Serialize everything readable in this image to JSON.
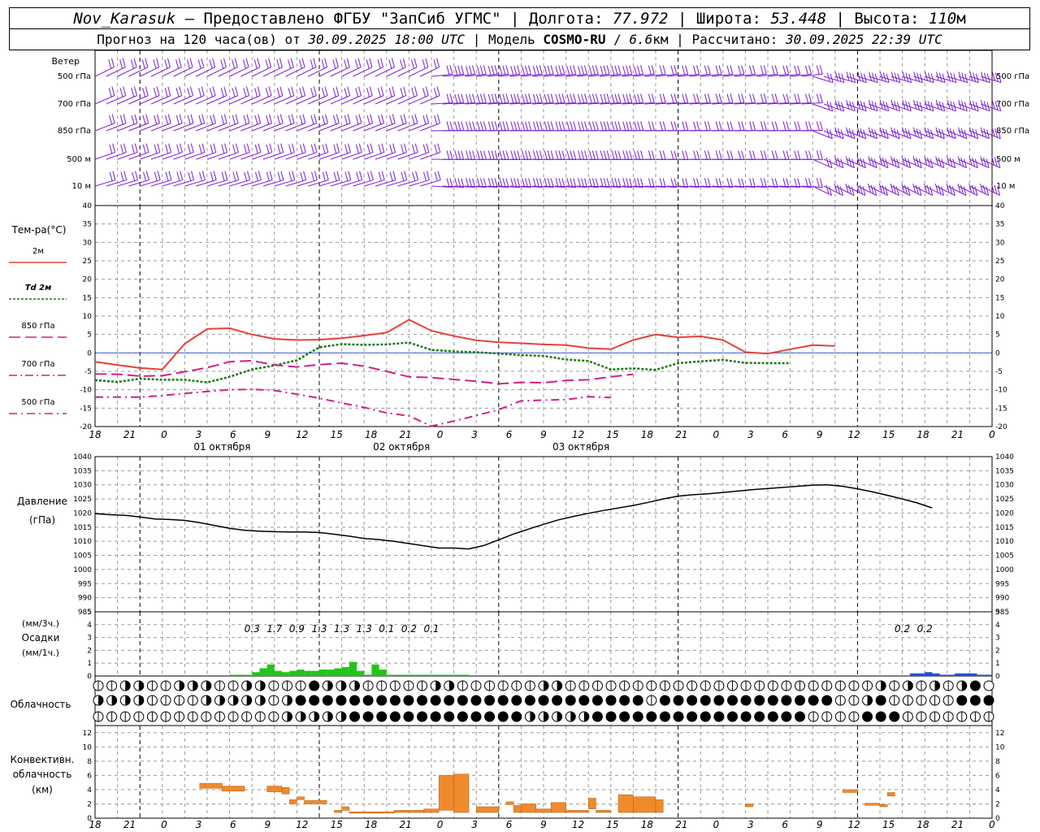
{
  "header": {
    "station": "Nov_Karasuk",
    "sep": " – ",
    "provider": "Предоставлено ФГБУ \"ЗапСиб УГМС\"",
    "lon_label": "Долгота:",
    "lon_value": "77.972",
    "lat_label": "Широта:",
    "lat_value": "53.448",
    "alt_label": "Высота:",
    "alt_value": "110",
    "alt_unit": "м",
    "forecast_label": "Прогноз на 120 часа(ов) от",
    "forecast_start": "30.09.2025 18:00 UTC",
    "model_label": "Модель",
    "model_name": "COSMO-RU",
    "model_res": "6.6",
    "model_res_unit": "км",
    "calc_label": "Рассчитано:",
    "calc_time": "30.09.2025 22:39 UTC"
  },
  "colors": {
    "wind": "#7a1fd0",
    "t2m": "#e8403a",
    "td2m": "#1a7a10",
    "t850": "#d0208a",
    "t700": "#d0208a",
    "t500": "#d0208a",
    "pressure": "#000000",
    "precip3h": "#22c31a",
    "precip_snow": "#1f4fd8",
    "convective": "#ef8a2c",
    "grid": "#9a9a9a",
    "zero": "#3f5fd8"
  },
  "wind_panel": {
    "title": "Ветер",
    "levels": [
      "500 гПа",
      "700 гПа",
      "850 гПа",
      "500 м",
      "10  м"
    ]
  },
  "time_axis": {
    "hour_labels": [
      "18",
      "21",
      "0",
      "3",
      "6",
      "9",
      "12",
      "15",
      "18",
      "21",
      "0",
      "3",
      "6",
      "9",
      "12",
      "15",
      "18",
      "21",
      "0",
      "3",
      "6",
      "9",
      "12",
      "15",
      "18",
      "21",
      "0"
    ],
    "dates": [
      "01 октября",
      "02 октября",
      "03 октября"
    ]
  },
  "legend": {
    "title": "Тем-ра(°C)",
    "items": [
      {
        "label": "2м"
      },
      {
        "label": "Td  2м"
      },
      {
        "label": "850 гПа"
      },
      {
        "label": "700 гПа"
      },
      {
        "label": "500 гПа"
      }
    ]
  },
  "pressure_panel": {
    "label1": "Давление",
    "label2": "(гПа)"
  },
  "precip_panel": {
    "label1": "(мм/3ч.)",
    "label2": "Осадки",
    "label3": "(мм/1ч.)"
  },
  "cloud_panel": {
    "label": "Облачность"
  },
  "conv_panel": {
    "label1": "Конвективн.",
    "label2": "облачность",
    "label3": "(км)"
  },
  "chart_data": [
    {
      "type": "line",
      "name": "temperature",
      "ylim": [
        -20,
        40
      ],
      "yticks": [
        -20,
        -15,
        -10,
        -5,
        0,
        5,
        10,
        15,
        20,
        25,
        30,
        35,
        40
      ],
      "x": [
        0,
        3,
        6,
        9,
        12,
        15,
        18,
        21,
        24,
        27,
        30,
        33,
        36,
        39,
        42,
        45,
        48,
        51,
        54,
        57,
        60,
        63,
        66,
        69,
        72,
        75,
        78,
        81,
        84,
        87,
        90,
        93,
        96,
        99,
        102,
        105,
        108,
        111,
        114,
        117,
        120,
        123,
        126
      ],
      "series": [
        {
          "name": "2м",
          "values": [
            -2.4,
            -3.3,
            -4.1,
            -4.5,
            2.5,
            6.5,
            6.7,
            5,
            3.8,
            3.5,
            3.6,
            4,
            4.7,
            5.5,
            9,
            6,
            4.6,
            3.4,
            2.9,
            2.6,
            2.3,
            2.1,
            1.3,
            1,
            3.5,
            5,
            4.2,
            4.5,
            3.5,
            0.2,
            -0.2,
            1,
            2.1,
            1.9,
            null,
            null,
            null,
            null,
            null,
            null,
            null,
            null,
            null
          ]
        },
        {
          "name": "Td  2м",
          "values": [
            -7.4,
            -7.9,
            -7,
            -7.3,
            -7.3,
            -8,
            -6.5,
            -4.5,
            -3.4,
            -2,
            1.5,
            2.4,
            2.2,
            2.3,
            2.8,
            0.8,
            0.4,
            0.2,
            -0.2,
            -0.6,
            -0.8,
            -1.8,
            -2.2,
            -4.5,
            -4.2,
            -4.6,
            -2.8,
            -2.3,
            -1.9,
            -2.7,
            -2.8,
            -2.8,
            null,
            null,
            null,
            null,
            null,
            null,
            null,
            null,
            null,
            null,
            null
          ]
        },
        {
          "name": "850 гПа",
          "values": [
            -5.7,
            -5.8,
            -6.3,
            -6.2,
            -5.1,
            -4,
            -2.4,
            -2.1,
            -3.3,
            -3.8,
            -3.2,
            -2.8,
            -3.6,
            -5,
            -6.5,
            -6.7,
            -7.2,
            -7.7,
            -8.4,
            -8,
            -8.1,
            -7.5,
            -7.3,
            -6.5,
            -5.8,
            null,
            null,
            null,
            null,
            null,
            null,
            null,
            null,
            null,
            null,
            null,
            null,
            null,
            null,
            null,
            null,
            null,
            null
          ]
        },
        {
          "name": "700 гПа",
          "values": [
            null,
            null,
            null,
            null,
            null,
            null,
            null,
            null,
            null,
            null,
            null,
            null,
            null,
            null,
            null,
            null,
            null,
            null,
            null,
            null,
            null,
            null,
            null,
            null,
            null,
            null,
            null,
            null,
            null,
            null,
            null,
            null,
            null,
            null,
            null,
            null,
            null,
            null,
            null,
            null,
            null,
            null,
            null
          ]
        },
        {
          "name": "500 гПа",
          "values": [
            -12,
            -12,
            -12,
            -11.6,
            -11,
            -10.5,
            -10,
            -9.9,
            -10.2,
            -11.2,
            -12.3,
            -13.6,
            -14.8,
            -16.3,
            -17.1,
            -19.9,
            -18.5,
            -17,
            -15.4,
            -13,
            -12.8,
            -12.7,
            -11.9,
            -12.1,
            null,
            null,
            null,
            null,
            null,
            null,
            null,
            null,
            null,
            null,
            null,
            null,
            null,
            null,
            null,
            null,
            null,
            null,
            null
          ]
        }
      ]
    },
    {
      "type": "line",
      "name": "pressure",
      "ylim": [
        985,
        1040
      ],
      "yticks": [
        985,
        990,
        995,
        1000,
        1005,
        1010,
        1015,
        1020,
        1025,
        1030,
        1035,
        1040
      ],
      "x": [
        0,
        2,
        4,
        6,
        8,
        10,
        12,
        14,
        16,
        18,
        20,
        22,
        24,
        26,
        28,
        30,
        32,
        34,
        36,
        38,
        40,
        42,
        44,
        46,
        48,
        50,
        52,
        54,
        56,
        58,
        60,
        62,
        64,
        66,
        68,
        70,
        72,
        74,
        76,
        78,
        80,
        82,
        84,
        86,
        88,
        90,
        92,
        94,
        96,
        98,
        100,
        102,
        104,
        106,
        108,
        110,
        112,
        114,
        116,
        118,
        120
      ],
      "values": [
        1019.8,
        1019.4,
        1019.2,
        1018.6,
        1017.9,
        1017.7,
        1017.4,
        1016.6,
        1015.6,
        1014.6,
        1013.9,
        1013.6,
        1013.4,
        1013.3,
        1013.3,
        1013.1,
        1012.5,
        1011.8,
        1011,
        1010.6,
        1010,
        1009.2,
        1008.4,
        1007.6,
        1007.6,
        1007.3,
        1008.5,
        1010.5,
        1012.6,
        1014.3,
        1016,
        1017.6,
        1018.8,
        1019.9,
        1020.9,
        1021.8,
        1022.7,
        1023.8,
        1025,
        1026,
        1026.5,
        1026.8,
        1027.3,
        1027.8,
        1028.3,
        1028.7,
        1029.1,
        1029.5,
        1029.9,
        1030,
        1029.5,
        1028.6,
        1027.5,
        1026.3,
        1025,
        1023.6,
        1021.8,
        null,
        null,
        null,
        null
      ]
    },
    {
      "type": "bar",
      "name": "precipitation",
      "ylim": [
        0,
        5
      ],
      "yticks": [
        0,
        1,
        2,
        3,
        4,
        5
      ],
      "three_hour_labels": [
        {
          "hour": 21,
          "value": "0.3"
        },
        {
          "hour": 24,
          "value": "1.7"
        },
        {
          "hour": 27,
          "value": "0.9"
        },
        {
          "hour": 30,
          "value": "1.3"
        },
        {
          "hour": 33,
          "value": "1.3"
        },
        {
          "hour": 36,
          "value": "1.3"
        },
        {
          "hour": 39,
          "value": "0.1"
        },
        {
          "hour": 42,
          "value": "0.2"
        },
        {
          "hour": 45,
          "value": "0.1"
        },
        {
          "hour": 108,
          "value": "0.2"
        },
        {
          "hour": 111,
          "value": "0.2"
        }
      ],
      "hourly_rain": [
        0,
        0,
        0,
        0,
        0,
        0,
        0,
        0,
        0,
        0,
        0,
        0,
        0,
        0,
        0,
        0,
        0,
        0,
        0.1,
        0.1,
        0.1,
        0.3,
        0.6,
        0.9,
        0.4,
        0.3,
        0.4,
        0.5,
        0.4,
        0.4,
        0.5,
        0.5,
        0.6,
        0.7,
        1.1,
        0.4,
        0.1,
        0.9,
        0.5,
        0.1,
        0.1,
        0.1,
        0.1,
        0.1,
        0.1,
        0.1,
        0.1,
        0.1,
        0.1,
        0.1,
        0,
        0,
        0,
        0,
        0,
        0,
        0,
        0,
        0,
        0,
        0,
        0,
        0,
        0,
        0,
        0,
        0,
        0,
        0,
        0,
        0,
        0,
        0,
        0,
        0,
        0,
        0,
        0,
        0,
        0,
        0,
        0,
        0,
        0,
        0,
        0,
        0,
        0,
        0,
        0,
        0,
        0,
        0,
        0,
        0,
        0,
        0,
        0,
        0,
        0,
        0,
        0,
        0,
        0,
        0,
        0,
        0,
        0,
        0,
        0,
        0,
        0,
        0,
        0,
        0,
        0,
        0,
        0,
        0,
        0,
        0,
        0
      ],
      "hourly_snow": [
        0,
        0,
        0,
        0,
        0,
        0,
        0,
        0,
        0,
        0,
        0,
        0,
        0,
        0,
        0,
        0,
        0,
        0,
        0,
        0,
        0,
        0,
        0,
        0,
        0,
        0,
        0,
        0,
        0,
        0,
        0,
        0,
        0,
        0,
        0,
        0,
        0,
        0,
        0,
        0,
        0,
        0,
        0,
        0,
        0,
        0,
        0,
        0,
        0,
        0,
        0,
        0,
        0,
        0,
        0,
        0,
        0,
        0,
        0,
        0,
        0,
        0,
        0,
        0,
        0,
        0,
        0,
        0,
        0,
        0,
        0,
        0,
        0,
        0,
        0,
        0,
        0,
        0,
        0,
        0,
        0,
        0,
        0,
        0,
        0,
        0,
        0,
        0,
        0,
        0,
        0,
        0,
        0,
        0,
        0,
        0,
        0,
        0,
        0,
        0,
        0,
        0,
        0,
        0,
        0,
        0,
        0,
        0,
        0,
        0.2,
        0.2,
        0.3,
        0.2,
        0.1,
        0.1,
        0.2,
        0.2,
        0.2,
        0.1,
        0.1,
        0
      ]
    },
    {
      "type": "bar",
      "name": "convective_clouds",
      "ylim": [
        0,
        13
      ],
      "yticks": [
        0,
        2,
        4,
        6,
        8,
        10,
        12
      ],
      "boxes": [
        {
          "h0": 14,
          "h1": 17,
          "base": 4.2,
          "top": 4.9
        },
        {
          "h0": 17,
          "h1": 20,
          "base": 3.8,
          "top": 4.5
        },
        {
          "h0": 23,
          "h1": 25,
          "base": 3.7,
          "top": 4.5
        },
        {
          "h0": 25,
          "h1": 26,
          "base": 3.4,
          "top": 4.3
        },
        {
          "h0": 26,
          "h1": 27,
          "base": 2,
          "top": 2.6
        },
        {
          "h0": 27,
          "h1": 28,
          "base": 2.6,
          "top": 3
        },
        {
          "h0": 28,
          "h1": 31,
          "base": 2,
          "top": 2.5
        },
        {
          "h0": 32,
          "h1": 33,
          "base": 0.8,
          "top": 1.1
        },
        {
          "h0": 33,
          "h1": 34,
          "base": 1.1,
          "top": 1.6
        },
        {
          "h0": 34,
          "h1": 40,
          "base": 0.7,
          "top": 0.9
        },
        {
          "h0": 40,
          "h1": 44,
          "base": 0.8,
          "top": 1.1
        },
        {
          "h0": 44,
          "h1": 46,
          "base": 0.8,
          "top": 1.3
        },
        {
          "h0": 46,
          "h1": 48,
          "base": 1.1,
          "top": 6
        },
        {
          "h0": 48,
          "h1": 50,
          "base": 0.8,
          "top": 6.2
        },
        {
          "h0": 51,
          "h1": 54,
          "base": 0.8,
          "top": 1.6
        },
        {
          "h0": 55,
          "h1": 56,
          "base": 1.9,
          "top": 2.3
        },
        {
          "h0": 56,
          "h1": 57,
          "base": 0.8,
          "top": 1.8
        },
        {
          "h0": 57,
          "h1": 59,
          "base": 0.8,
          "top": 2
        },
        {
          "h0": 59,
          "h1": 61,
          "base": 0.8,
          "top": 1.3
        },
        {
          "h0": 61,
          "h1": 63,
          "base": 0.8,
          "top": 2.2
        },
        {
          "h0": 63,
          "h1": 66,
          "base": 0.8,
          "top": 1.1
        },
        {
          "h0": 66,
          "h1": 67,
          "base": 1.3,
          "top": 2.8
        },
        {
          "h0": 67,
          "h1": 69,
          "base": 0.8,
          "top": 1.1
        },
        {
          "h0": 70,
          "h1": 72,
          "base": 0.8,
          "top": 3.3
        },
        {
          "h0": 72,
          "h1": 75,
          "base": 0.8,
          "top": 3
        },
        {
          "h0": 75,
          "h1": 76,
          "base": 0.8,
          "top": 2.6
        },
        {
          "h0": 87,
          "h1": 88,
          "base": 1.6,
          "top": 2
        },
        {
          "h0": 100,
          "h1": 102,
          "base": 3.6,
          "top": 4
        },
        {
          "h0": 103,
          "h1": 105,
          "base": 1.8,
          "top": 2.1
        },
        {
          "h0": 105,
          "h1": 106,
          "base": 1.6,
          "top": 1.9
        },
        {
          "h0": 106,
          "h1": 107,
          "base": 3.1,
          "top": 3.6
        }
      ]
    }
  ]
}
